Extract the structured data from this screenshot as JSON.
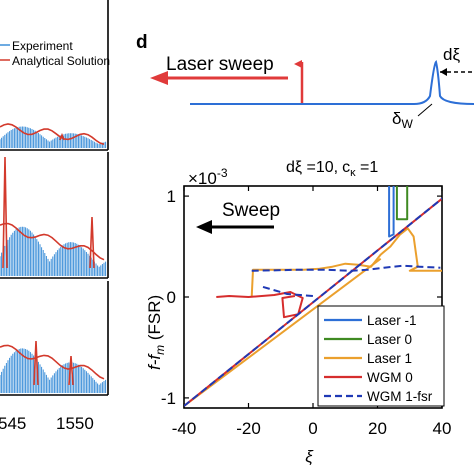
{
  "chart_data": [
    {
      "type": "line",
      "panel": "left (cropped)",
      "legend": [
        "Experiment",
        "Analytical Solution"
      ],
      "x_tick_labels": [
        "545",
        "1550"
      ],
      "colors": {
        "experiment": "#3c8fd8",
        "analytical": "#d33a2c"
      }
    },
    {
      "type": "line",
      "panel_label": "d",
      "inset": {
        "arrow_label": "Laser sweep",
        "label_dxi": "dξ",
        "label_delta": "δ",
        "label_delta_sub": "W"
      },
      "title_left": "dξ =10,",
      "title_c": "c",
      "title_c_sub": "κ",
      "title_right": " =1",
      "y_exp_base": "×10",
      "y_exp_power": "-3",
      "arrow_label": "Sweep",
      "xlabel": "ξ",
      "ylabel_f": "f",
      "ylabel_f2": "-f",
      "ylabel_sub": "m",
      "ylabel_rest": " (FSR)",
      "xlim": [
        -40,
        40
      ],
      "ylim": [
        -1.1,
        1.1
      ],
      "x_ticks": [
        -40,
        -20,
        0,
        20,
        40
      ],
      "x_tick_labels": [
        "-40",
        "-20",
        "0",
        "20",
        "40"
      ],
      "y_ticks": [
        -1,
        0,
        1
      ],
      "y_tick_labels": [
        "-1",
        "0",
        "1"
      ],
      "series": [
        {
          "name": "Laser -1",
          "color": "#2d6fd6",
          "style": "solid",
          "points": [
            [
              23.6,
              1.15
            ],
            [
              23.6,
              0.6
            ],
            [
              25.0,
              0.62
            ],
            [
              25.0,
              1.15
            ]
          ]
        },
        {
          "name": "Laser 0",
          "color": "#3f8a22",
          "style": "solid",
          "points": [
            [
              26.0,
              1.15
            ],
            [
              26.0,
              0.77
            ],
            [
              29.2,
              0.77
            ],
            [
              29.2,
              1.15
            ]
          ]
        },
        {
          "name": "Laser 1",
          "color": "#eba02d",
          "style": "solid",
          "points": [
            [
              -19.0,
              0.0
            ],
            [
              -18.6,
              0.27
            ],
            [
              -10,
              0.27
            ],
            [
              -3,
              0.27
            ],
            [
              2,
              0.28
            ],
            [
              6,
              0.3
            ],
            [
              10,
              0.33
            ],
            [
              14,
              0.32
            ],
            [
              18,
              0.3
            ],
            [
              21,
              0.42
            ],
            [
              24,
              0.5
            ],
            [
              27,
              0.62
            ],
            [
              29.4,
              0.68
            ],
            [
              31.2,
              0.6
            ],
            [
              32.5,
              0.3
            ],
            [
              30.0,
              0.26
            ],
            [
              33.5,
              0.26
            ],
            [
              38.0,
              0.26
            ],
            [
              41.0,
              0.26
            ]
          ]
        },
        {
          "name": "WGM 0",
          "color": "#d62d2d",
          "style": "solid",
          "points": [
            [
              -30.0,
              0.0
            ],
            [
              -26,
              0.01
            ],
            [
              -20,
              0.0
            ],
            [
              -12,
              0.02
            ],
            [
              -7,
              0.05
            ],
            [
              -3.2,
              -0.01
            ],
            [
              -4.6,
              -0.17
            ],
            [
              -9.0,
              -0.2
            ],
            [
              -9.5,
              -0.01
            ],
            [
              -5.6,
              0.01
            ]
          ]
        },
        {
          "name": "WGM 1-fsr",
          "color": "#1f39b5",
          "style": "dashed",
          "points": [
            [
              -19.0,
              0.26
            ],
            [
              -5,
              0.27
            ],
            [
              4,
              0.27
            ],
            [
              12,
              0.26
            ],
            [
              17,
              0.27
            ],
            [
              22,
              0.29
            ],
            [
              28,
              0.31
            ],
            [
              33,
              0.3
            ],
            [
              39.5,
              0.29
            ]
          ]
        },
        {
          "name": "WGM 1-fsr (lower branch)",
          "color": "#1f39b5",
          "style": "dashed",
          "points": [
            [
              -15.5,
              0.1
            ],
            [
              -8,
              0.03
            ],
            [
              0.0,
              0.01
            ]
          ]
        },
        {
          "name": "Laser 1 (diagonal)",
          "color": "#eba02d",
          "style": "solid",
          "points": [
            [
              -40,
              -1.08
            ],
            [
              21.0,
              0.38
            ]
          ]
        },
        {
          "name": "WGM 0 (diagonal)",
          "color": "#d62d2d",
          "style": "solid",
          "points": [
            [
              -40,
              -1.08
            ],
            [
              41.0,
              1.0
            ]
          ]
        },
        {
          "name": "WGM 1-fsr (diagonal)",
          "color": "#1f39b5",
          "style": "dashed",
          "points": [
            [
              -40,
              -1.08
            ],
            [
              41.0,
              1.0
            ]
          ]
        }
      ]
    }
  ]
}
